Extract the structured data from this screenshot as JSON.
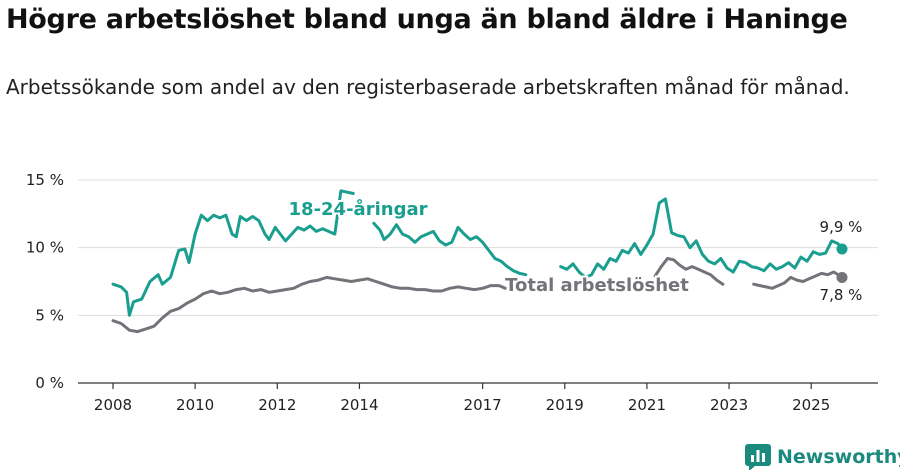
{
  "title": "Högre arbetslöshet bland unga än bland äldre i Haninge",
  "subtitle": "Arbetssökande som andel av den registerbaserade arbetskraften månad för månad.",
  "brand": "Newsworthy",
  "colors": {
    "youth": "#1a9e8f",
    "total": "#75727a",
    "grid": "#dddddd",
    "axis": "#333333"
  },
  "chart_data": {
    "type": "line",
    "x_range": [
      2008.0,
      2025.75
    ],
    "ylim": [
      0,
      15
    ],
    "y_ticks": [
      0,
      5,
      10,
      15
    ],
    "y_tick_labels": [
      "0 %",
      "5 %",
      "10 %",
      "15 %"
    ],
    "x_ticks": [
      2008,
      2010,
      2012,
      2014,
      2017,
      2019,
      2021,
      2023,
      2025
    ],
    "x_tick_labels": [
      "2008",
      "2010",
      "2012",
      "2014",
      "2017",
      "2019",
      "2021",
      "2023",
      "2025"
    ],
    "series": [
      {
        "name": "18-24-åringar",
        "label": "18-24-åringar",
        "end_label": "9,9 %",
        "color": "#1a9e8f",
        "points": [
          [
            2008.0,
            7.3
          ],
          [
            2008.2,
            7.1
          ],
          [
            2008.33,
            6.7
          ],
          [
            2008.4,
            5.0
          ],
          [
            2008.5,
            6.0
          ],
          [
            2008.7,
            6.2
          ],
          [
            2008.9,
            7.5
          ],
          [
            2009.1,
            8.0
          ],
          [
            2009.2,
            7.3
          ],
          [
            2009.4,
            7.8
          ],
          [
            2009.6,
            9.8
          ],
          [
            2009.75,
            9.9
          ],
          [
            2009.85,
            8.9
          ],
          [
            2010.0,
            11.0
          ],
          [
            2010.15,
            12.4
          ],
          [
            2010.3,
            12.0
          ],
          [
            2010.45,
            12.4
          ],
          [
            2010.6,
            12.2
          ],
          [
            2010.75,
            12.4
          ],
          [
            2010.9,
            11.0
          ],
          [
            2011.0,
            10.8
          ],
          [
            2011.1,
            12.3
          ],
          [
            2011.25,
            12.0
          ],
          [
            2011.4,
            12.3
          ],
          [
            2011.55,
            12.0
          ],
          [
            2011.7,
            11.0
          ],
          [
            2011.8,
            10.6
          ],
          [
            2011.95,
            11.5
          ],
          [
            2012.1,
            10.9
          ],
          [
            2012.2,
            10.5
          ],
          [
            2012.35,
            11.0
          ],
          [
            2012.5,
            11.5
          ],
          [
            2012.65,
            11.3
          ],
          [
            2012.8,
            11.6
          ],
          [
            2012.95,
            11.2
          ],
          [
            2013.1,
            11.4
          ],
          [
            2013.25,
            11.2
          ],
          [
            2013.4,
            11.0
          ],
          [
            2013.55,
            14.2
          ],
          [
            2013.7,
            14.1
          ],
          [
            2013.85,
            14.0
          ]
        ],
        "points_b": [
          [
            2014.35,
            11.8
          ],
          [
            2014.5,
            11.3
          ],
          [
            2014.6,
            10.6
          ],
          [
            2014.75,
            11.0
          ],
          [
            2014.9,
            11.7
          ],
          [
            2015.05,
            11.0
          ],
          [
            2015.2,
            10.8
          ],
          [
            2015.35,
            10.4
          ],
          [
            2015.5,
            10.8
          ],
          [
            2015.65,
            11.0
          ],
          [
            2015.8,
            11.2
          ],
          [
            2015.95,
            10.5
          ],
          [
            2016.1,
            10.2
          ],
          [
            2016.25,
            10.4
          ],
          [
            2016.4,
            11.5
          ],
          [
            2016.55,
            11.0
          ],
          [
            2016.7,
            10.6
          ],
          [
            2016.85,
            10.8
          ],
          [
            2017.0,
            10.4
          ],
          [
            2017.15,
            9.8
          ],
          [
            2017.3,
            9.2
          ],
          [
            2017.45,
            9.0
          ],
          [
            2017.6,
            8.6
          ],
          [
            2017.75,
            8.3
          ],
          [
            2017.9,
            8.1
          ],
          [
            2018.05,
            8.0
          ]
        ],
        "points_c": [
          [
            2018.9,
            8.6
          ],
          [
            2019.05,
            8.4
          ],
          [
            2019.2,
            8.8
          ],
          [
            2019.35,
            8.2
          ],
          [
            2019.5,
            7.8
          ],
          [
            2019.65,
            8.0
          ],
          [
            2019.8,
            8.8
          ],
          [
            2019.95,
            8.4
          ],
          [
            2020.1,
            9.2
          ],
          [
            2020.25,
            9.0
          ],
          [
            2020.4,
            9.8
          ],
          [
            2020.55,
            9.6
          ],
          [
            2020.7,
            10.3
          ],
          [
            2020.85,
            9.5
          ],
          [
            2021.0,
            10.2
          ],
          [
            2021.15,
            11.0
          ],
          [
            2021.3,
            13.3
          ],
          [
            2021.45,
            13.6
          ],
          [
            2021.6,
            11.1
          ],
          [
            2021.75,
            10.9
          ],
          [
            2021.9,
            10.8
          ],
          [
            2022.05,
            10.0
          ],
          [
            2022.2,
            10.5
          ],
          [
            2022.35,
            9.5
          ],
          [
            2022.5,
            9.0
          ],
          [
            2022.65,
            8.8
          ],
          [
            2022.8,
            9.2
          ],
          [
            2022.95,
            8.5
          ],
          [
            2023.1,
            8.2
          ],
          [
            2023.25,
            9.0
          ],
          [
            2023.4,
            8.9
          ],
          [
            2023.55,
            8.6
          ],
          [
            2023.7,
            8.5
          ],
          [
            2023.85,
            8.3
          ],
          [
            2024.0,
            8.8
          ],
          [
            2024.15,
            8.4
          ],
          [
            2024.3,
            8.6
          ],
          [
            2024.45,
            8.9
          ],
          [
            2024.6,
            8.5
          ],
          [
            2024.75,
            9.3
          ],
          [
            2024.9,
            9.0
          ],
          [
            2025.05,
            9.7
          ],
          [
            2025.2,
            9.5
          ],
          [
            2025.35,
            9.6
          ],
          [
            2025.5,
            10.5
          ],
          [
            2025.65,
            10.3
          ],
          [
            2025.75,
            9.9
          ]
        ]
      },
      {
        "name": "Total arbetslöshet",
        "label": "Total arbetslöshet",
        "end_label": "7,8 %",
        "color": "#75727a",
        "points": [
          [
            2008.0,
            4.6
          ],
          [
            2008.2,
            4.4
          ],
          [
            2008.4,
            3.9
          ],
          [
            2008.6,
            3.8
          ],
          [
            2008.8,
            4.0
          ],
          [
            2009.0,
            4.2
          ],
          [
            2009.2,
            4.8
          ],
          [
            2009.4,
            5.3
          ],
          [
            2009.6,
            5.5
          ],
          [
            2009.8,
            5.9
          ],
          [
            2010.0,
            6.2
          ],
          [
            2010.2,
            6.6
          ],
          [
            2010.4,
            6.8
          ],
          [
            2010.6,
            6.6
          ],
          [
            2010.8,
            6.7
          ],
          [
            2011.0,
            6.9
          ],
          [
            2011.2,
            7.0
          ],
          [
            2011.4,
            6.8
          ],
          [
            2011.6,
            6.9
          ],
          [
            2011.8,
            6.7
          ],
          [
            2012.0,
            6.8
          ],
          [
            2012.2,
            6.9
          ],
          [
            2012.4,
            7.0
          ],
          [
            2012.6,
            7.3
          ],
          [
            2012.8,
            7.5
          ],
          [
            2013.0,
            7.6
          ],
          [
            2013.2,
            7.8
          ],
          [
            2013.4,
            7.7
          ],
          [
            2013.6,
            7.6
          ],
          [
            2013.8,
            7.5
          ],
          [
            2014.0,
            7.6
          ],
          [
            2014.2,
            7.7
          ],
          [
            2014.4,
            7.5
          ],
          [
            2014.6,
            7.3
          ],
          [
            2014.8,
            7.1
          ],
          [
            2015.0,
            7.0
          ],
          [
            2015.2,
            7.0
          ],
          [
            2015.4,
            6.9
          ],
          [
            2015.6,
            6.9
          ],
          [
            2015.8,
            6.8
          ],
          [
            2016.0,
            6.8
          ],
          [
            2016.2,
            7.0
          ],
          [
            2016.4,
            7.1
          ],
          [
            2016.6,
            7.0
          ],
          [
            2016.8,
            6.9
          ],
          [
            2017.0,
            7.0
          ],
          [
            2017.2,
            7.2
          ],
          [
            2017.4,
            7.2
          ],
          [
            2017.55,
            7.0
          ]
        ],
        "points_b": [
          [
            2021.2,
            7.9
          ],
          [
            2021.35,
            8.6
          ],
          [
            2021.5,
            9.2
          ],
          [
            2021.65,
            9.1
          ],
          [
            2021.8,
            8.7
          ],
          [
            2021.95,
            8.4
          ],
          [
            2022.1,
            8.6
          ],
          [
            2022.25,
            8.4
          ],
          [
            2022.4,
            8.2
          ],
          [
            2022.55,
            8.0
          ],
          [
            2022.7,
            7.6
          ],
          [
            2022.85,
            7.3
          ]
        ],
        "points_c": [
          [
            2023.6,
            7.3
          ],
          [
            2023.75,
            7.2
          ],
          [
            2023.9,
            7.1
          ],
          [
            2024.05,
            7.0
          ],
          [
            2024.2,
            7.2
          ],
          [
            2024.35,
            7.4
          ],
          [
            2024.5,
            7.8
          ],
          [
            2024.65,
            7.6
          ],
          [
            2024.8,
            7.5
          ],
          [
            2024.95,
            7.7
          ],
          [
            2025.1,
            7.9
          ],
          [
            2025.25,
            8.1
          ],
          [
            2025.4,
            8.0
          ],
          [
            2025.55,
            8.2
          ],
          [
            2025.75,
            7.8
          ]
        ]
      }
    ]
  }
}
